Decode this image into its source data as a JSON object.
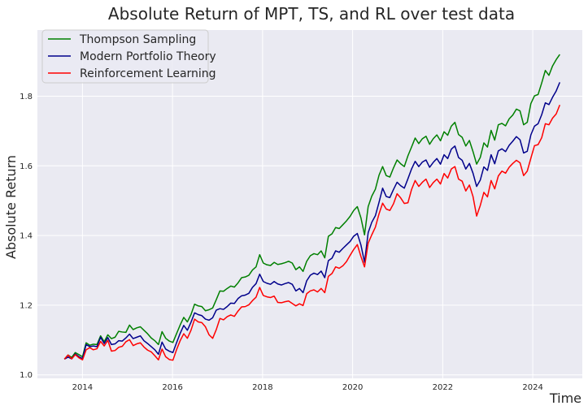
{
  "chart_data": {
    "type": "line",
    "title": "Absolute Return of MPT, TS, and RL over test data",
    "xlabel": "Time",
    "ylabel": "Absolute Return",
    "xlim": [
      2013.0,
      2025.1
    ],
    "ylim": [
      0.99,
      1.99
    ],
    "xticks": [
      2014,
      2016,
      2018,
      2020,
      2022,
      2024
    ],
    "yticks": [
      1.0,
      1.2,
      1.4,
      1.6,
      1.8
    ],
    "grid": true,
    "legend_position": "top-left",
    "x_start": 2013.6,
    "x_end": 2024.6,
    "colors": {
      "background": "#eaeaf2",
      "grid": "#ffffff",
      "Thompson Sampling": "#008000",
      "Modern Portfolio Theory": "#00008b",
      "Reinforcement Learning": "#ff0000"
    },
    "series": [
      {
        "name": "Thompson Sampling",
        "values": [
          1.045,
          1.057,
          1.05,
          1.064,
          1.058,
          1.052,
          1.092,
          1.085,
          1.088,
          1.087,
          1.112,
          1.095,
          1.115,
          1.104,
          1.108,
          1.125,
          1.123,
          1.122,
          1.143,
          1.13,
          1.135,
          1.138,
          1.128,
          1.118,
          1.106,
          1.098,
          1.087,
          1.124,
          1.105,
          1.097,
          1.093,
          1.118,
          1.143,
          1.165,
          1.152,
          1.173,
          1.203,
          1.198,
          1.196,
          1.184,
          1.187,
          1.192,
          1.216,
          1.241,
          1.24,
          1.248,
          1.255,
          1.252,
          1.264,
          1.279,
          1.281,
          1.286,
          1.301,
          1.31,
          1.345,
          1.321,
          1.316,
          1.314,
          1.323,
          1.317,
          1.319,
          1.322,
          1.326,
          1.321,
          1.302,
          1.31,
          1.297,
          1.326,
          1.342,
          1.348,
          1.345,
          1.356,
          1.336,
          1.398,
          1.405,
          1.423,
          1.42,
          1.431,
          1.442,
          1.455,
          1.472,
          1.483,
          1.451,
          1.402,
          1.483,
          1.513,
          1.533,
          1.573,
          1.598,
          1.572,
          1.568,
          1.594,
          1.617,
          1.606,
          1.598,
          1.629,
          1.654,
          1.68,
          1.664,
          1.678,
          1.685,
          1.662,
          1.678,
          1.689,
          1.672,
          1.698,
          1.688,
          1.714,
          1.725,
          1.69,
          1.682,
          1.657,
          1.673,
          1.641,
          1.605,
          1.624,
          1.666,
          1.654,
          1.702,
          1.674,
          1.718,
          1.722,
          1.715,
          1.735,
          1.746,
          1.763,
          1.758,
          1.718,
          1.725,
          1.779,
          1.801,
          1.805,
          1.838,
          1.874,
          1.86,
          1.887,
          1.905,
          1.92
        ]
      },
      {
        "name": "Modern Portfolio Theory",
        "values": [
          1.045,
          1.051,
          1.046,
          1.06,
          1.052,
          1.047,
          1.087,
          1.081,
          1.083,
          1.081,
          1.108,
          1.09,
          1.107,
          1.087,
          1.089,
          1.098,
          1.097,
          1.106,
          1.117,
          1.104,
          1.108,
          1.112,
          1.098,
          1.09,
          1.081,
          1.072,
          1.059,
          1.094,
          1.074,
          1.068,
          1.064,
          1.092,
          1.119,
          1.142,
          1.128,
          1.151,
          1.178,
          1.173,
          1.17,
          1.16,
          1.157,
          1.164,
          1.186,
          1.19,
          1.188,
          1.196,
          1.206,
          1.205,
          1.219,
          1.227,
          1.229,
          1.234,
          1.251,
          1.262,
          1.289,
          1.268,
          1.263,
          1.26,
          1.268,
          1.261,
          1.258,
          1.262,
          1.265,
          1.26,
          1.241,
          1.248,
          1.236,
          1.27,
          1.286,
          1.292,
          1.288,
          1.298,
          1.279,
          1.328,
          1.335,
          1.356,
          1.352,
          1.363,
          1.373,
          1.383,
          1.398,
          1.406,
          1.373,
          1.323,
          1.408,
          1.438,
          1.457,
          1.495,
          1.536,
          1.512,
          1.509,
          1.532,
          1.553,
          1.543,
          1.536,
          1.563,
          1.591,
          1.613,
          1.598,
          1.611,
          1.617,
          1.596,
          1.61,
          1.621,
          1.605,
          1.632,
          1.621,
          1.648,
          1.657,
          1.624,
          1.616,
          1.591,
          1.607,
          1.579,
          1.541,
          1.559,
          1.597,
          1.587,
          1.632,
          1.606,
          1.643,
          1.649,
          1.641,
          1.659,
          1.671,
          1.684,
          1.675,
          1.637,
          1.642,
          1.689,
          1.714,
          1.721,
          1.747,
          1.781,
          1.776,
          1.797,
          1.815,
          1.84
        ]
      },
      {
        "name": "Reinforcement Learning",
        "values": [
          1.045,
          1.057,
          1.046,
          1.058,
          1.049,
          1.043,
          1.072,
          1.078,
          1.072,
          1.075,
          1.096,
          1.083,
          1.099,
          1.068,
          1.07,
          1.079,
          1.082,
          1.095,
          1.101,
          1.084,
          1.089,
          1.092,
          1.08,
          1.071,
          1.066,
          1.055,
          1.043,
          1.074,
          1.052,
          1.044,
          1.042,
          1.072,
          1.098,
          1.118,
          1.105,
          1.128,
          1.16,
          1.152,
          1.15,
          1.138,
          1.115,
          1.105,
          1.13,
          1.162,
          1.158,
          1.167,
          1.172,
          1.168,
          1.183,
          1.195,
          1.196,
          1.201,
          1.213,
          1.223,
          1.251,
          1.228,
          1.224,
          1.222,
          1.226,
          1.208,
          1.207,
          1.21,
          1.212,
          1.205,
          1.198,
          1.204,
          1.199,
          1.233,
          1.241,
          1.244,
          1.238,
          1.248,
          1.236,
          1.283,
          1.291,
          1.31,
          1.306,
          1.313,
          1.325,
          1.343,
          1.36,
          1.374,
          1.34,
          1.31,
          1.378,
          1.402,
          1.424,
          1.462,
          1.493,
          1.476,
          1.472,
          1.491,
          1.52,
          1.508,
          1.492,
          1.494,
          1.532,
          1.558,
          1.541,
          1.553,
          1.562,
          1.538,
          1.552,
          1.562,
          1.548,
          1.578,
          1.565,
          1.591,
          1.598,
          1.562,
          1.556,
          1.528,
          1.545,
          1.512,
          1.456,
          1.486,
          1.524,
          1.511,
          1.558,
          1.534,
          1.571,
          1.585,
          1.579,
          1.596,
          1.607,
          1.616,
          1.609,
          1.572,
          1.585,
          1.622,
          1.658,
          1.661,
          1.681,
          1.721,
          1.718,
          1.737,
          1.749,
          1.775
        ]
      }
    ]
  }
}
